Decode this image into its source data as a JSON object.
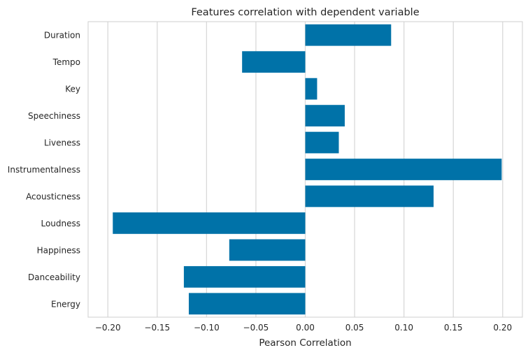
{
  "chart_data": {
    "type": "bar",
    "orientation": "horizontal",
    "title": "Features correlation with dependent variable",
    "xlabel": "Pearson Correlation",
    "ylabel": "",
    "categories": [
      "Duration",
      "Tempo",
      "Key",
      "Speechiness",
      "Liveness",
      "Instrumentalness",
      "Acousticness",
      "Loudness",
      "Happiness",
      "Danceability",
      "Energy"
    ],
    "values": [
      0.087,
      -0.064,
      0.012,
      0.04,
      0.034,
      0.199,
      0.13,
      -0.195,
      -0.077,
      -0.123,
      -0.118
    ],
    "xlim": [
      -0.22,
      0.22
    ],
    "xticks": [
      -0.2,
      -0.15,
      -0.1,
      -0.05,
      0.0,
      0.05,
      0.1,
      0.15,
      0.2
    ],
    "xtick_labels": [
      "−0.20",
      "−0.15",
      "−0.10",
      "−0.05",
      "0.00",
      "0.05",
      "0.10",
      "0.15",
      "0.20"
    ],
    "grid": "vertical",
    "bar_color": "#0072a8",
    "grid_color": "#d9d9d9",
    "frame_color": "#cfcfcf"
  }
}
